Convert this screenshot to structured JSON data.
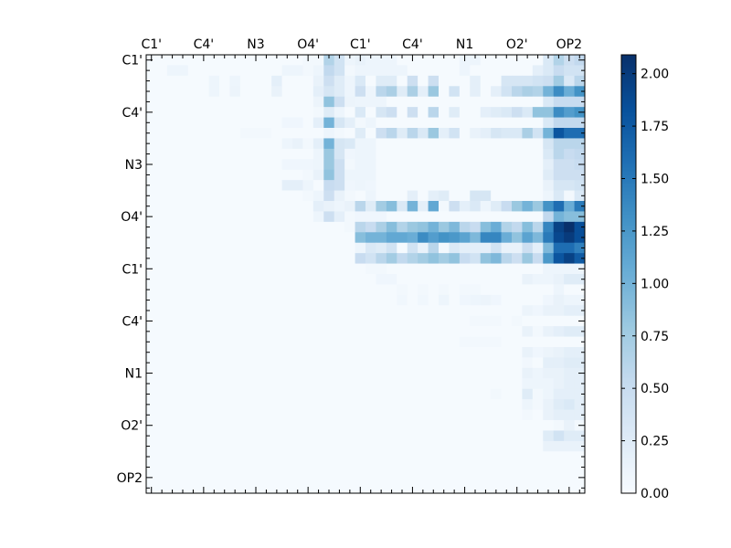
{
  "chart_data": {
    "type": "heatmap",
    "title": "",
    "xlabel": "",
    "ylabel": "",
    "n_rows": 42,
    "n_cols": 42,
    "x_tick_labels": [
      "C1'",
      "C4'",
      "N3",
      "O4'",
      "C1'",
      "C4'",
      "N1",
      "O2'",
      "OP2"
    ],
    "y_tick_labels": [
      "C1'",
      "C4'",
      "N3",
      "O4'",
      "C1'",
      "C4'",
      "N1",
      "O2'",
      "OP2"
    ],
    "tick_every_n_cells": 5,
    "colormap": "Blues",
    "colormap_stops": [
      "#f7fbff",
      "#deebf7",
      "#c6dbef",
      "#9ecae1",
      "#6baed6",
      "#4292c6",
      "#2171b5",
      "#08519c",
      "#08306b"
    ],
    "vmin": 0,
    "vmax": 2.09,
    "colorbar_ticks": [
      "0.00",
      "0.25",
      "0.50",
      "0.75",
      "1.00",
      "1.25",
      "1.50",
      "1.75",
      "2.00"
    ],
    "background_value": 0.02,
    "values_sparse": {
      "0": {
        "15": 0.05,
        "16": 0.05,
        "17": 0.65,
        "18": 0.4,
        "19": 0.1,
        "20": 0.15,
        "21": 0.1,
        "22": 0.1,
        "23": 0.1,
        "30": 0.1,
        "31": 0.1,
        "38": 0.3,
        "39": 0.65,
        "40": 0.45,
        "41": 0.55
      },
      "1": {
        "2": 0.1,
        "3": 0.1,
        "13": 0.1,
        "14": 0.1,
        "15": 0.05,
        "16": 0.1,
        "17": 0.55,
        "18": 0.4,
        "19": 0.05,
        "20": 0.1,
        "21": 0.1,
        "22": 0.1,
        "23": 0.1,
        "24": 0.1,
        "30": 0.1,
        "37": 0.2,
        "38": 0.3,
        "39": 0.5,
        "40": 0.4,
        "41": 0.4
      },
      "2": {
        "6": 0.1,
        "8": 0.1,
        "12": 0.2,
        "16": 0.15,
        "17": 0.45,
        "18": 0.25,
        "19": 0.1,
        "20": 0.3,
        "22": 0.25,
        "23": 0.25,
        "25": 0.45,
        "27": 0.45,
        "31": 0.2,
        "34": 0.35,
        "35": 0.35,
        "36": 0.35,
        "37": 0.4,
        "38": 0.45,
        "39": 0.75,
        "40": 0.3,
        "41": 0.6
      },
      "3": {
        "6": 0.1,
        "8": 0.12,
        "12": 0.15,
        "16": 0.2,
        "17": 0.35,
        "18": 0.25,
        "19": 0.1,
        "20": 0.45,
        "21": 0.1,
        "22": 0.6,
        "23": 0.7,
        "24": 0.25,
        "25": 0.7,
        "26": 0.2,
        "27": 0.8,
        "29": 0.4,
        "31": 0.2,
        "33": 0.2,
        "34": 0.4,
        "35": 0.6,
        "36": 0.7,
        "37": 0.65,
        "38": 1.0,
        "39": 1.35,
        "40": 1.05,
        "41": 1.3
      },
      "4": {
        "16": 0.12,
        "17": 0.85,
        "18": 0.45,
        "19": 0.12,
        "20": 0.1,
        "21": 0.1,
        "22": 0.1,
        "38": 0.3,
        "39": 0.5,
        "40": 0.5,
        "41": 0.5
      },
      "5": {
        "16": 0.05,
        "17": 0.25,
        "18": 0.1,
        "20": 0.3,
        "22": 0.35,
        "23": 0.45,
        "25": 0.45,
        "27": 0.6,
        "29": 0.25,
        "32": 0.2,
        "33": 0.25,
        "34": 0.3,
        "35": 0.45,
        "36": 0.3,
        "37": 0.85,
        "38": 0.85,
        "39": 1.35,
        "40": 1.2,
        "41": 1.3
      },
      "6": {
        "13": 0.08,
        "14": 0.08,
        "16": 0.2,
        "17": 1.0,
        "18": 0.35,
        "19": 0.2,
        "20": 0.05,
        "21": 0.1,
        "38": 0.3,
        "39": 0.55,
        "40": 0.55,
        "41": 0.55
      },
      "7": {
        "9": 0.05,
        "10": 0.05,
        "11": 0.05,
        "17": 0.1,
        "18": 0.05,
        "20": 0.25,
        "22": 0.45,
        "23": 0.6,
        "24": 0.25,
        "25": 0.6,
        "26": 0.3,
        "27": 0.8,
        "28": 0.2,
        "29": 0.4,
        "31": 0.15,
        "32": 0.2,
        "33": 0.35,
        "34": 0.3,
        "35": 0.3,
        "36": 0.7,
        "37": 0.4,
        "38": 1.0,
        "39": 1.8,
        "40": 1.6,
        "41": 1.6
      },
      "8": {
        "13": 0.1,
        "14": 0.15,
        "15": 0.05,
        "16": 0.2,
        "17": 1.0,
        "18": 0.35,
        "19": 0.3,
        "20": 0.1,
        "21": 0.1,
        "38": 0.35,
        "39": 0.6,
        "40": 0.6,
        "41": 0.6
      },
      "9": {
        "16": 0.1,
        "17": 0.8,
        "18": 0.35,
        "19": 0.08,
        "20": 0.1,
        "21": 0.1,
        "38": 0.3,
        "39": 0.6,
        "40": 0.5,
        "41": 0.55
      },
      "10": {
        "13": 0.08,
        "14": 0.08,
        "15": 0.08,
        "16": 0.1,
        "17": 0.8,
        "18": 0.45,
        "19": 0.05,
        "20": 0.1,
        "21": 0.1,
        "38": 0.2,
        "39": 0.45,
        "40": 0.45,
        "41": 0.5
      },
      "11": {
        "15": 0.05,
        "16": 0.15,
        "17": 0.85,
        "18": 0.45,
        "19": 0.1,
        "20": 0.1,
        "21": 0.1,
        "38": 0.25,
        "39": 0.45,
        "40": 0.45,
        "41": 0.45
      },
      "12": {
        "13": 0.2,
        "14": 0.2,
        "15": 0.1,
        "17": 0.5,
        "18": 0.45,
        "19": 0.08,
        "20": 0.1,
        "21": 0.08,
        "38": 0.15,
        "39": 0.35,
        "40": 0.35,
        "41": 0.4
      },
      "13": {
        "15": 0.05,
        "16": 0.1,
        "17": 0.45,
        "18": 0.15,
        "19": 0.05,
        "21": 0.1,
        "25": 0.2,
        "27": 0.2,
        "28": 0.25,
        "31": 0.35,
        "32": 0.35,
        "38": 0.1,
        "39": 0.3,
        "40": 0.05,
        "41": 0.3
      },
      "14": {
        "16": 0.2,
        "17": 0.15,
        "18": 0.1,
        "19": 0.15,
        "20": 0.6,
        "21": 0.25,
        "22": 0.75,
        "23": 0.9,
        "24": 0.3,
        "25": 1.0,
        "26": 0.2,
        "27": 1.1,
        "28": 0.05,
        "29": 0.45,
        "30": 0.2,
        "31": 0.3,
        "32": 0.1,
        "33": 0.25,
        "34": 0.5,
        "35": 0.8,
        "36": 1.0,
        "37": 0.8,
        "38": 1.3,
        "39": 1.6,
        "40": 1.05,
        "41": 1.5
      },
      "15": {
        "16": 0.1,
        "17": 0.45,
        "18": 0.2,
        "19": 0.05,
        "20": 0.08,
        "21": 0.08,
        "22": 0.08,
        "38": 0.55,
        "39": 1.0,
        "40": 0.9,
        "41": 0.9
      },
      "16": {
        "19": 0.05,
        "20": 0.6,
        "21": 0.5,
        "22": 0.7,
        "23": 0.9,
        "24": 0.65,
        "25": 0.8,
        "26": 0.85,
        "27": 1.0,
        "28": 0.8,
        "29": 0.95,
        "30": 0.6,
        "31": 0.5,
        "32": 0.9,
        "33": 1.05,
        "34": 0.65,
        "35": 0.55,
        "36": 0.9,
        "37": 0.6,
        "38": 1.4,
        "39": 1.95,
        "40": 2.09,
        "41": 1.85
      },
      "17": {
        "20": 0.9,
        "21": 1.0,
        "22": 1.0,
        "23": 1.1,
        "24": 1.1,
        "25": 1.05,
        "26": 1.35,
        "27": 1.2,
        "28": 1.3,
        "29": 1.25,
        "30": 1.15,
        "31": 0.95,
        "32": 1.4,
        "33": 1.4,
        "34": 1.05,
        "35": 0.85,
        "36": 1.15,
        "37": 0.95,
        "38": 1.5,
        "39": 1.9,
        "40": 2.0,
        "41": 1.85
      },
      "18": {
        "20": 0.1,
        "21": 0.3,
        "22": 0.25,
        "23": 0.4,
        "25": 0.4,
        "26": 0.15,
        "27": 0.6,
        "28": 0.05,
        "29": 0.3,
        "30": 0.2,
        "31": 0.2,
        "32": 0.2,
        "33": 0.4,
        "34": 0.15,
        "35": 0.15,
        "36": 0.45,
        "37": 0.2,
        "38": 0.95,
        "39": 1.6,
        "40": 1.6,
        "41": 1.45
      },
      "19": {
        "20": 0.5,
        "21": 0.4,
        "22": 0.6,
        "23": 0.75,
        "24": 0.55,
        "25": 0.65,
        "26": 0.75,
        "27": 0.85,
        "28": 0.75,
        "29": 0.85,
        "30": 0.5,
        "31": 0.4,
        "32": 0.85,
        "33": 0.95,
        "34": 0.6,
        "35": 0.45,
        "36": 0.8,
        "37": 0.5,
        "38": 1.25,
        "39": 1.8,
        "40": 1.95,
        "41": 1.75
      },
      "20": {
        "21": 0.05,
        "22": 0.05,
        "38": 0.1,
        "39": 0.1,
        "40": 0.1,
        "41": 0.1
      },
      "21": {
        "22": 0.08,
        "23": 0.08,
        "36": 0.15,
        "37": 0.1,
        "38": 0.1,
        "39": 0.15,
        "40": 0.25,
        "41": 0.25
      },
      "22": {
        "24": 0.05,
        "26": 0.05,
        "28": 0.05,
        "30": 0.05,
        "31": 0.05,
        "39": 0.1
      },
      "23": {
        "24": 0.07,
        "26": 0.07,
        "28": 0.1,
        "30": 0.08,
        "31": 0.1,
        "32": 0.12,
        "33": 0.08,
        "38": 0.08,
        "39": 0.15,
        "40": 0.1,
        "41": 0.1
      },
      "24": {
        "36": 0.12,
        "37": 0.08,
        "38": 0.15,
        "39": 0.15,
        "40": 0.2,
        "41": 0.2
      },
      "25": {
        "31": 0.05,
        "32": 0.05,
        "33": 0.05,
        "35": 0.05
      },
      "26": {
        "36": 0.15,
        "37": 0.05,
        "38": 0.15,
        "39": 0.2,
        "40": 0.25,
        "41": 0.25
      },
      "27": {
        "30": 0.05,
        "31": 0.05,
        "32": 0.05,
        "33": 0.05
      },
      "28": {
        "36": 0.15,
        "37": 0.08,
        "38": 0.12,
        "39": 0.15,
        "40": 0.2,
        "41": 0.2
      },
      "29": {
        "36": 0.06,
        "38": 0.2,
        "39": 0.2,
        "40": 0.25,
        "41": 0.25
      },
      "30": {
        "36": 0.15,
        "37": 0.1,
        "38": 0.15,
        "39": 0.15,
        "40": 0.2,
        "41": 0.2
      },
      "31": {
        "36": 0.1,
        "37": 0.1,
        "38": 0.1,
        "39": 0.15,
        "40": 0.2,
        "41": 0.2
      },
      "32": {
        "33": 0.05,
        "36": 0.25,
        "37": 0.05,
        "38": 0.1,
        "39": 0.2,
        "40": 0.2,
        "41": 0.2
      },
      "33": {
        "36": 0.1,
        "37": 0.05,
        "38": 0.15,
        "39": 0.25,
        "40": 0.3,
        "41": 0.2
      },
      "34": {
        "36": 0.05,
        "38": 0.15,
        "39": 0.2,
        "40": 0.2,
        "41": 0.2
      },
      "35": {
        "39": 0.05,
        "40": 0.15,
        "41": 0.05
      },
      "36": {
        "38": 0.25,
        "39": 0.4,
        "40": 0.25,
        "41": 0.25
      },
      "37": {
        "38": 0.15,
        "39": 0.15,
        "40": 0.15,
        "41": 0.15
      }
    }
  }
}
